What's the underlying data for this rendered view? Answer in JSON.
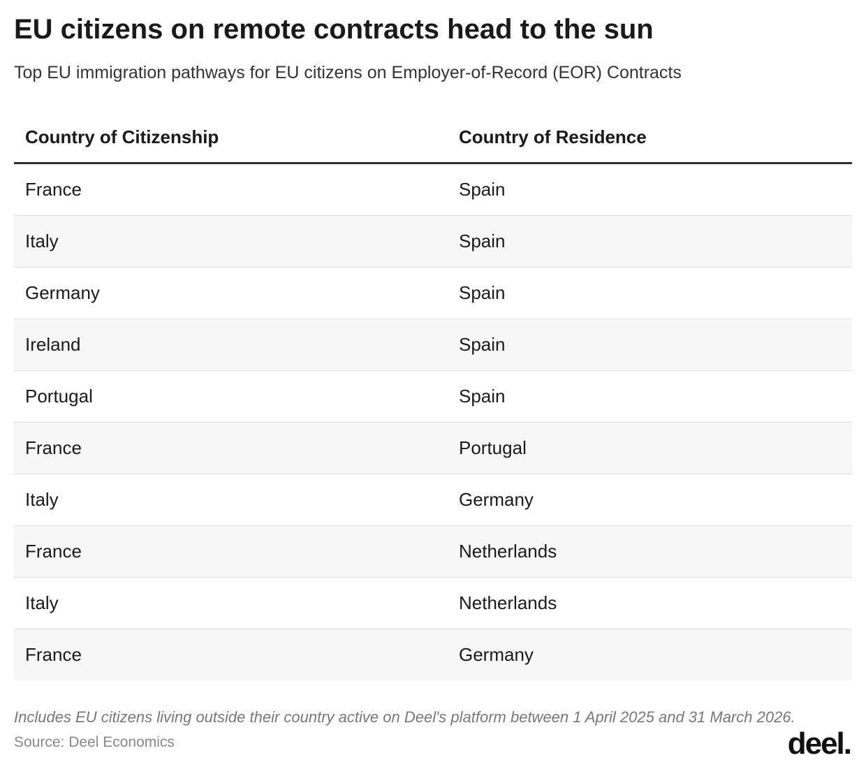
{
  "header": {
    "title": "EU citizens on remote contracts head to the sun",
    "subtitle": "Top EU immigration pathways for EU citizens on Employer-of-Record (EOR) Contracts"
  },
  "table": {
    "columns": [
      "Country of Citizenship",
      "Country of Residence"
    ],
    "rows": [
      [
        "France",
        "Spain"
      ],
      [
        "Italy",
        "Spain"
      ],
      [
        "Germany",
        "Spain"
      ],
      [
        "Ireland",
        "Spain"
      ],
      [
        "Portugal",
        "Spain"
      ],
      [
        "France",
        "Portugal"
      ],
      [
        "Italy",
        "Germany"
      ],
      [
        "France",
        "Netherlands"
      ],
      [
        "Italy",
        "Netherlands"
      ],
      [
        "France",
        "Germany"
      ]
    ]
  },
  "footer": {
    "note": "Includes EU citizens living outside their country active on Deel's platform between 1 April 2025 and 31 March 2026.",
    "source": "Source: Deel Economics",
    "logo": "deel."
  }
}
